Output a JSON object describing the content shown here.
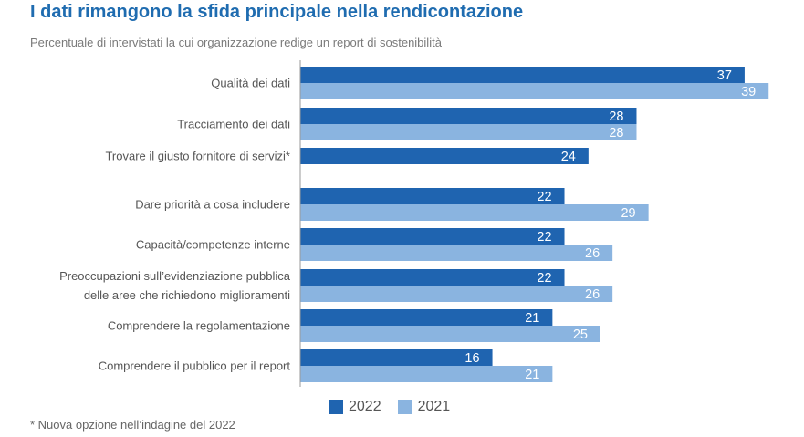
{
  "title": "I dati rimangono la sfida principale nella rendicontazione",
  "subtitle": "Percentuale di intervistati la cui organizzazione redige un report di sostenibilità",
  "footnote": "* Nuova opzione nell’indagine del 2022",
  "colors": {
    "s2022": "#1f64b0",
    "s2021": "#8ab4e0",
    "axis": "#9a9a9a"
  },
  "chart_data": {
    "type": "bar",
    "orientation": "horizontal",
    "categories": [
      [
        "Qualità dei dati"
      ],
      [
        "Tracciamento dei dati"
      ],
      [
        "Trovare il giusto fornitore di servizi*"
      ],
      [
        "Dare priorità a cosa includere"
      ],
      [
        "Capacità/competenze interne"
      ],
      [
        "Preoccupazioni sull’evidenziazione pubblica",
        "delle aree che richiedono miglioramenti"
      ],
      [
        "Comprendere la regolamentazione"
      ],
      [
        "Comprendere il pubblico per il report"
      ]
    ],
    "series": [
      {
        "name": "2022",
        "values": [
          37,
          28,
          24,
          22,
          22,
          22,
          21,
          16
        ]
      },
      {
        "name": "2021",
        "values": [
          39,
          28,
          null,
          29,
          26,
          26,
          25,
          21
        ]
      }
    ],
    "xlim": [
      0,
      40
    ],
    "legend": "bottom"
  }
}
